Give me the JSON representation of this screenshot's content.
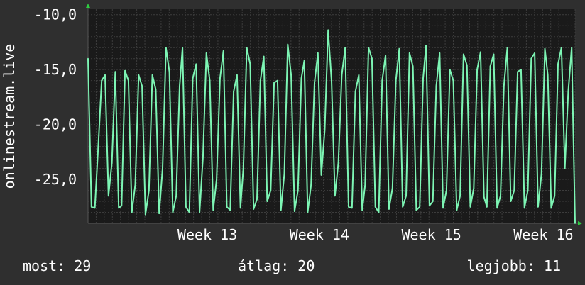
{
  "chart_data": {
    "type": "line",
    "title": "",
    "ylabel": "onlinestream.live",
    "xlabel": "",
    "ylim": [
      -29.0,
      -9.5
    ],
    "yticks": [
      {
        "value": -10,
        "label": "-10,0"
      },
      {
        "value": -15,
        "label": "-15,0"
      },
      {
        "value": -20,
        "label": "-20,0"
      },
      {
        "value": -25,
        "label": "-25,0"
      }
    ],
    "xlim": [
      0,
      1
    ],
    "xticks": [
      {
        "position": 0.245,
        "label": "Week 13"
      },
      {
        "position": 0.475,
        "label": "Week 14"
      },
      {
        "position": 0.705,
        "label": "Week 15"
      },
      {
        "position": 0.935,
        "label": "Week 16"
      }
    ],
    "grid": true,
    "colors": {
      "background": "#2f2f2f",
      "plot_background": "#1a1a1a",
      "line": "#7df5b4",
      "grid": "#3c3c3c",
      "axis_arrow": "#2ecc40"
    },
    "series": [
      {
        "name": "",
        "x": [
          0.0,
          0.007,
          0.014,
          0.021,
          0.028,
          0.035,
          0.042,
          0.049,
          0.056,
          0.063,
          0.069,
          0.076,
          0.083,
          0.09,
          0.097,
          0.104,
          0.111,
          0.118,
          0.125,
          0.132,
          0.139,
          0.146,
          0.153,
          0.16,
          0.167,
          0.174,
          0.181,
          0.188,
          0.194,
          0.201,
          0.208,
          0.215,
          0.222,
          0.229,
          0.236,
          0.243,
          0.25,
          0.257,
          0.264,
          0.271,
          0.278,
          0.285,
          0.292,
          0.299,
          0.306,
          0.313,
          0.319,
          0.326,
          0.333,
          0.34,
          0.347,
          0.354,
          0.361,
          0.368,
          0.375,
          0.382,
          0.389,
          0.396,
          0.403,
          0.41,
          0.417,
          0.424,
          0.431,
          0.438,
          0.444,
          0.451,
          0.458,
          0.465,
          0.472,
          0.479,
          0.486,
          0.493,
          0.5,
          0.507,
          0.514,
          0.521,
          0.528,
          0.535,
          0.542,
          0.549,
          0.556,
          0.563,
          0.569,
          0.576,
          0.583,
          0.59,
          0.597,
          0.604,
          0.611,
          0.618,
          0.625,
          0.632,
          0.639,
          0.646,
          0.653,
          0.66,
          0.667,
          0.674,
          0.681,
          0.688,
          0.694,
          0.701,
          0.708,
          0.715,
          0.722,
          0.729,
          0.736,
          0.743,
          0.75,
          0.757,
          0.764,
          0.771,
          0.778,
          0.785,
          0.792,
          0.799,
          0.806,
          0.813,
          0.819,
          0.826,
          0.833,
          0.84,
          0.847,
          0.854,
          0.861,
          0.868,
          0.875,
          0.882,
          0.889,
          0.896,
          0.903,
          0.91,
          0.917,
          0.924,
          0.931,
          0.938,
          0.944,
          0.951,
          0.958,
          0.965,
          0.972,
          0.979,
          0.986,
          0.993,
          1.0
        ],
        "values": [
          -14.0,
          -27.5,
          -27.6,
          -22.0,
          -16.0,
          -15.5,
          -26.5,
          -23.5,
          -15.2,
          -27.6,
          -27.4,
          -15.1,
          -16.0,
          -28.0,
          -25.5,
          -15.5,
          -16.5,
          -28.2,
          -26.0,
          -15.5,
          -16.8,
          -28.1,
          -24.0,
          -13.0,
          -15.2,
          -28.0,
          -26.5,
          -16.5,
          -13.0,
          -27.5,
          -28.0,
          -15.8,
          -14.5,
          -28.0,
          -23.0,
          -13.5,
          -16.0,
          -27.8,
          -25.0,
          -15.8,
          -13.3,
          -27.5,
          -27.8,
          -17.0,
          -15.5,
          -27.6,
          -24.0,
          -13.0,
          -14.5,
          -27.7,
          -26.8,
          -16.0,
          -13.8,
          -27.0,
          -26.0,
          -16.2,
          -16.0,
          -27.8,
          -24.5,
          -12.7,
          -15.5,
          -27.9,
          -26.0,
          -15.8,
          -14.2,
          -28.0,
          -25.5,
          -16.2,
          -13.5,
          -24.6,
          -20.5,
          -11.4,
          -16.0,
          -26.5,
          -23.5,
          -15.5,
          -13.0,
          -27.5,
          -27.6,
          -17.0,
          -15.5,
          -27.8,
          -25.5,
          -13.0,
          -14.0,
          -27.5,
          -28.0,
          -16.0,
          -13.7,
          -27.7,
          -25.8,
          -16.0,
          -13.1,
          -27.5,
          -26.5,
          -13.5,
          -14.7,
          -27.8,
          -27.5,
          -15.8,
          -12.8,
          -27.4,
          -27.0,
          -16.5,
          -13.5,
          -27.6,
          -26.0,
          -15.0,
          -16.0,
          -27.8,
          -26.5,
          -13.6,
          -14.6,
          -27.5,
          -25.8,
          -15.0,
          -13.4,
          -26.6,
          -27.5,
          -14.7,
          -13.6,
          -27.6,
          -26.5,
          -16.5,
          -13.0,
          -27.0,
          -26.0,
          -15.2,
          -15.0,
          -27.6,
          -26.0,
          -14.0,
          -13.5,
          -27.5,
          -24.5,
          -13.1,
          -15.5,
          -27.6,
          -26.5,
          -14.5,
          -13.0,
          -24.0,
          -17.0,
          -13.0,
          -29.0
        ]
      }
    ]
  },
  "footer": {
    "now_label": "most: 29",
    "avg_label": "átlag: 20",
    "best_label": "legjobb: 11"
  }
}
